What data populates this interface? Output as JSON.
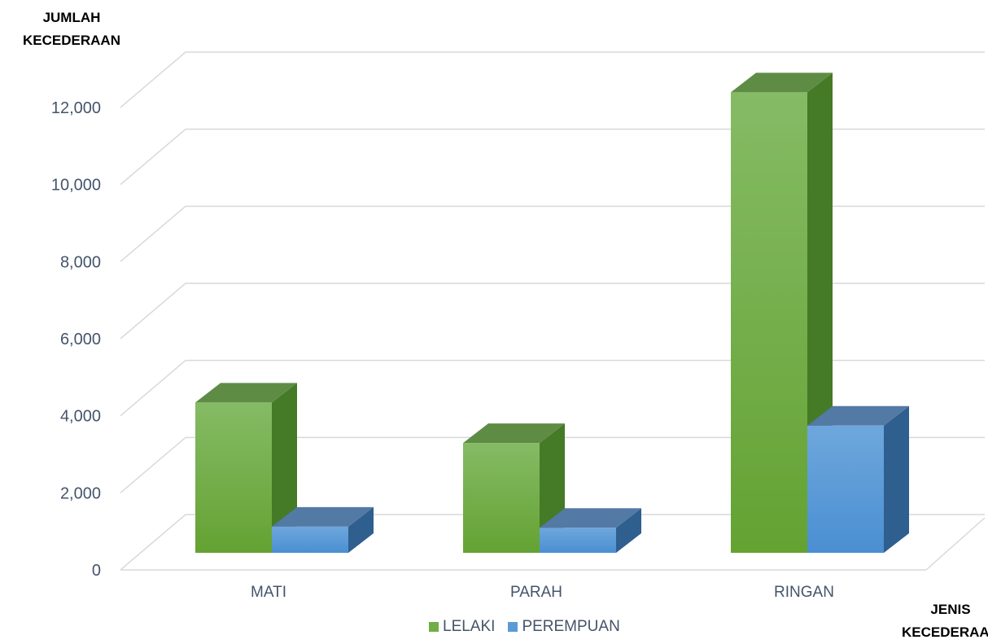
{
  "chart_data": {
    "type": "bar",
    "style": "3d-clustered-column",
    "ylabel": "JUMLAH KECEDERAAN",
    "ylabel_lines": [
      "JUMLAH",
      "KECEDERAAN"
    ],
    "xlabel": "JENIS KECEDERAAN",
    "xlabel_lines": [
      "JENIS",
      "KECEDERAAN"
    ],
    "categories": [
      "MATI",
      "PARAH",
      "RINGAN"
    ],
    "series": [
      {
        "name": "LELAKI",
        "values": [
          3900,
          2850,
          11950
        ],
        "color": "#70ad47"
      },
      {
        "name": "PEREMPUAN",
        "values": [
          680,
          650,
          3300
        ],
        "color": "#5b9bd5"
      }
    ],
    "ylim": [
      0,
      12000
    ],
    "yticks": [
      0,
      2000,
      4000,
      6000,
      8000,
      10000,
      12000
    ],
    "ytick_labels": [
      "0",
      "2,000",
      "4,000",
      "6,000",
      "8,000",
      "10,000",
      "12,000"
    ],
    "grid": true,
    "legend_position": "bottom"
  }
}
